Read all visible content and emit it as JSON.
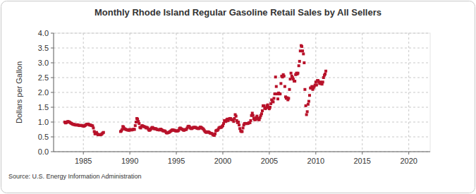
{
  "chart_data": {
    "type": "scatter",
    "title": "Monthly Rhode Island Regular Gasoline Retail Sales by All Sellers",
    "y_label": "Dollars per Gallon",
    "source": "Source: U.S. Energy Information Administration",
    "color": "#b8122a",
    "marker": "square",
    "grid": true,
    "xlim": [
      1981.8,
      2022.3
    ],
    "xticks": [
      1985,
      1990,
      1995,
      2000,
      2005,
      2010,
      2015,
      2020
    ],
    "ylim": [
      0,
      4
    ],
    "yticks": [
      {
        "value": 0,
        "label": "0.0"
      },
      0.5,
      {
        "value": 1,
        "label": "1.0"
      },
      1.5,
      {
        "value": 2,
        "label": "2.0"
      },
      2.5,
      {
        "value": 3,
        "label": "3.0"
      },
      3.5,
      {
        "value": 4,
        "label": "4.0"
      }
    ],
    "x": [
      1983.0,
      1983.08,
      1983.17,
      1983.25,
      1983.33,
      1983.42,
      1983.5,
      1983.58,
      1983.67,
      1983.75,
      1983.83,
      1983.92,
      1984.0,
      1984.08,
      1984.17,
      1984.25,
      1984.33,
      1984.42,
      1984.5,
      1984.58,
      1984.67,
      1984.75,
      1984.83,
      1984.92,
      1985.0,
      1985.08,
      1985.17,
      1985.25,
      1985.33,
      1985.42,
      1985.5,
      1985.58,
      1985.67,
      1985.75,
      1985.83,
      1985.92,
      1986.0,
      1986.08,
      1986.17,
      1986.25,
      1986.33,
      1986.42,
      1986.5,
      1986.58,
      1986.67,
      1986.75,
      1986.83,
      1986.92,
      1987.0,
      1987.08,
      1987.17,
      1989.0,
      1989.08,
      1989.17,
      1989.25,
      1989.33,
      1989.42,
      1989.5,
      1989.58,
      1989.67,
      1989.75,
      1989.83,
      1989.92,
      1990.0,
      1990.08,
      1990.17,
      1990.25,
      1990.33,
      1990.42,
      1990.5,
      1990.58,
      1990.67,
      1990.75,
      1990.83,
      1990.92,
      1991.0,
      1991.08,
      1991.17,
      1991.25,
      1991.33,
      1991.42,
      1991.5,
      1991.58,
      1991.67,
      1991.75,
      1991.83,
      1991.92,
      1992.0,
      1992.08,
      1992.17,
      1992.25,
      1992.33,
      1992.42,
      1992.5,
      1992.58,
      1992.67,
      1992.75,
      1992.83,
      1992.92,
      1993.0,
      1993.08,
      1993.17,
      1993.25,
      1993.33,
      1993.42,
      1993.5,
      1993.58,
      1993.67,
      1993.75,
      1993.83,
      1993.92,
      1994.0,
      1994.08,
      1994.17,
      1994.25,
      1994.33,
      1994.42,
      1994.5,
      1994.58,
      1994.67,
      1994.75,
      1994.83,
      1994.92,
      1995.0,
      1995.08,
      1995.17,
      1995.25,
      1995.33,
      1995.42,
      1995.5,
      1995.58,
      1995.67,
      1995.75,
      1995.83,
      1995.92,
      1996.0,
      1996.08,
      1996.17,
      1996.25,
      1996.33,
      1996.42,
      1996.5,
      1996.58,
      1996.67,
      1996.75,
      1996.83,
      1996.92,
      1997.0,
      1997.08,
      1997.17,
      1997.25,
      1997.33,
      1997.42,
      1997.5,
      1997.58,
      1997.67,
      1997.75,
      1997.83,
      1997.92,
      1998.0,
      1998.08,
      1998.17,
      1998.25,
      1998.33,
      1998.42,
      1998.5,
      1998.58,
      1998.67,
      1998.75,
      1998.83,
      1998.92,
      1999.0,
      1999.08,
      1999.17,
      1999.25,
      1999.33,
      1999.42,
      1999.5,
      1999.58,
      1999.67,
      1999.75,
      1999.83,
      1999.92,
      2000.0,
      2000.08,
      2000.17,
      2000.25,
      2000.33,
      2000.42,
      2000.5,
      2000.58,
      2000.67,
      2000.75,
      2000.83,
      2000.92,
      2001.0,
      2001.08,
      2001.17,
      2001.25,
      2001.33,
      2001.42,
      2001.5,
      2001.58,
      2001.67,
      2001.75,
      2001.83,
      2001.92,
      2002.0,
      2002.08,
      2002.17,
      2002.25,
      2002.33,
      2002.42,
      2002.5,
      2002.58,
      2002.67,
      2002.75,
      2002.83,
      2002.92,
      2003.0,
      2003.08,
      2003.17,
      2003.25,
      2003.33,
      2003.42,
      2003.5,
      2003.58,
      2003.67,
      2003.75,
      2003.83,
      2003.92,
      2004.0,
      2004.08,
      2004.17,
      2004.25,
      2004.33,
      2004.42,
      2004.5,
      2004.58,
      2004.67,
      2004.75,
      2004.83,
      2004.92,
      2005.0,
      2005.08,
      2005.17,
      2005.25,
      2005.33,
      2005.42,
      2005.5,
      2005.58,
      2005.67,
      2005.75,
      2005.83,
      2005.92,
      2006.0,
      2006.08,
      2006.17,
      2006.25,
      2006.33,
      2006.42,
      2006.5,
      2006.58,
      2006.67,
      2006.75,
      2006.83,
      2006.92,
      2007.0,
      2007.08,
      2007.17,
      2007.25,
      2007.33,
      2007.42,
      2007.5,
      2007.58,
      2007.67,
      2007.75,
      2007.83,
      2007.92,
      2008.0,
      2008.08,
      2008.17,
      2008.25,
      2008.33,
      2008.42,
      2008.5,
      2008.58,
      2008.67,
      2008.75,
      2008.83,
      2008.92,
      2009.0,
      2009.08,
      2009.17,
      2009.25,
      2009.33,
      2009.42,
      2009.5,
      2009.58,
      2009.67,
      2009.75,
      2009.83,
      2009.92,
      2010.0,
      2010.08,
      2010.17,
      2010.25,
      2010.33,
      2010.42,
      2010.5,
      2010.58,
      2010.67,
      2010.75,
      2010.83,
      2010.92,
      2011.0,
      2011.08
    ],
    "values": [
      1.0,
      0.97,
      0.98,
      1.0,
      1.02,
      1.01,
      1.0,
      0.98,
      0.96,
      0.95,
      0.93,
      0.92,
      0.92,
      0.91,
      0.9,
      0.9,
      0.91,
      0.9,
      0.89,
      0.88,
      0.88,
      0.89,
      0.88,
      0.87,
      0.87,
      0.86,
      0.88,
      0.9,
      0.92,
      0.93,
      0.93,
      0.92,
      0.9,
      0.9,
      0.89,
      0.88,
      0.87,
      0.8,
      0.68,
      0.6,
      0.63,
      0.65,
      0.6,
      0.57,
      0.58,
      0.57,
      0.57,
      0.58,
      0.6,
      0.63,
      0.65,
      0.68,
      0.7,
      0.75,
      0.85,
      0.83,
      0.78,
      0.76,
      0.75,
      0.74,
      0.73,
      0.73,
      0.72,
      0.75,
      0.74,
      0.73,
      0.74,
      0.75,
      0.76,
      0.75,
      0.88,
      1.0,
      1.12,
      1.1,
      1.02,
      0.95,
      0.82,
      0.8,
      0.85,
      0.88,
      0.86,
      0.85,
      0.84,
      0.83,
      0.8,
      0.82,
      0.8,
      0.75,
      0.72,
      0.73,
      0.76,
      0.8,
      0.82,
      0.8,
      0.78,
      0.77,
      0.78,
      0.77,
      0.75,
      0.74,
      0.74,
      0.73,
      0.75,
      0.76,
      0.74,
      0.72,
      0.7,
      0.7,
      0.7,
      0.68,
      0.64,
      0.63,
      0.64,
      0.65,
      0.66,
      0.68,
      0.7,
      0.72,
      0.74,
      0.73,
      0.72,
      0.72,
      0.7,
      0.7,
      0.7,
      0.7,
      0.72,
      0.78,
      0.8,
      0.78,
      0.76,
      0.75,
      0.73,
      0.72,
      0.74,
      0.75,
      0.75,
      0.8,
      0.85,
      0.86,
      0.84,
      0.8,
      0.78,
      0.78,
      0.8,
      0.82,
      0.82,
      0.82,
      0.82,
      0.8,
      0.79,
      0.78,
      0.78,
      0.8,
      0.83,
      0.82,
      0.8,
      0.78,
      0.76,
      0.72,
      0.68,
      0.66,
      0.65,
      0.67,
      0.67,
      0.66,
      0.64,
      0.62,
      0.62,
      0.61,
      0.58,
      0.56,
      0.55,
      0.6,
      0.7,
      0.72,
      0.72,
      0.75,
      0.8,
      0.82,
      0.82,
      0.82,
      0.85,
      0.88,
      0.95,
      1.05,
      1.02,
      1.02,
      1.08,
      1.1,
      1.05,
      1.1,
      1.12,
      1.12,
      1.08,
      1.08,
      1.07,
      1.02,
      1.12,
      1.25,
      1.2,
      1.05,
      0.98,
      1.0,
      0.9,
      0.78,
      0.7,
      0.68,
      0.68,
      0.8,
      0.9,
      0.95,
      0.95,
      0.95,
      0.95,
      0.95,
      0.96,
      0.98,
      0.98,
      1.05,
      1.22,
      1.3,
      1.22,
      1.12,
      1.08,
      1.08,
      1.15,
      1.2,
      1.12,
      1.08,
      1.08,
      1.15,
      1.22,
      1.28,
      1.38,
      1.55,
      1.55,
      1.48,
      1.45,
      1.48,
      1.55,
      1.58,
      1.5,
      1.45,
      1.5,
      1.62,
      1.75,
      1.7,
      1.68,
      1.8,
      1.95,
      2.52,
      2.2,
      1.95,
      1.78,
      1.98,
      1.95,
      1.95,
      2.3,
      2.55,
      2.52,
      2.6,
      2.55,
      2.2,
      1.85,
      1.8,
      1.82,
      1.75,
      1.8,
      2.1,
      2.45,
      2.65,
      2.55,
      2.5,
      2.45,
      2.38,
      2.38,
      2.6,
      2.65,
      2.62,
      2.65,
      2.9,
      3.05,
      3.4,
      3.58,
      3.55,
      3.4,
      3.3,
      3.0,
      2.1,
      1.55,
      1.25,
      1.35,
      1.6,
      1.7,
      1.9,
      2.15,
      2.15,
      2.2,
      2.1,
      2.15,
      2.2,
      2.25,
      2.35,
      2.25,
      2.4,
      2.4,
      2.35,
      2.3,
      2.35,
      2.3,
      2.28,
      2.35,
      2.5,
      2.58,
      2.62,
      2.72
    ]
  }
}
